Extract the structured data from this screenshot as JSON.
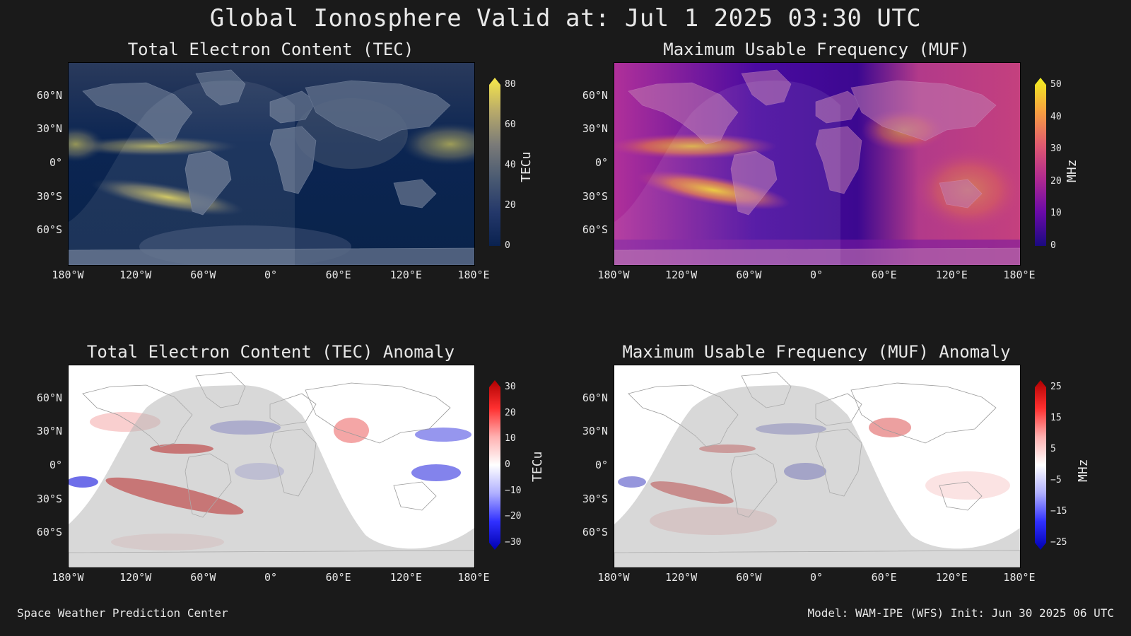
{
  "title": "Global Ionosphere Valid at: Jul 1 2025 03:30 UTC",
  "panels": {
    "tec": {
      "title": "Total Electron Content (TEC)",
      "colorbar_label": "TECu",
      "colorbar_ticks": [
        "80",
        "60",
        "40",
        "20",
        "0"
      ],
      "colormap": "cividis"
    },
    "muf": {
      "title": "Maximum Usable Frequency (MUF)",
      "colorbar_label": "MHz",
      "colorbar_ticks": [
        "50",
        "40",
        "30",
        "20",
        "10",
        "0"
      ],
      "colormap": "plasma"
    },
    "tec_anom": {
      "title": "Total Electron Content (TEC) Anomaly",
      "colorbar_label": "TECu",
      "colorbar_ticks": [
        "30",
        "20",
        "10",
        "0",
        "−10",
        "−20",
        "−30"
      ],
      "colormap": "bwr"
    },
    "muf_anom": {
      "title": "Maximum Usable Frequency (MUF) Anomaly",
      "colorbar_label": "MHz",
      "colorbar_ticks": [
        "25",
        "15",
        "5",
        "−5",
        "−15",
        "−25"
      ],
      "colormap": "bwr"
    }
  },
  "lat_labels": [
    "60°N",
    "30°N",
    "0°",
    "30°S",
    "60°S"
  ],
  "lon_labels": [
    "180°W",
    "120°W",
    "60°W",
    "0°",
    "60°E",
    "120°E",
    "180°E"
  ],
  "footer": {
    "left": "Space Weather Prediction Center",
    "right": "Model: WAM-IPE (WFS) Init: Jun 30 2025 06 UTC"
  },
  "colors": {
    "background": "#1a1a1a",
    "text": "#e8e8e8"
  }
}
